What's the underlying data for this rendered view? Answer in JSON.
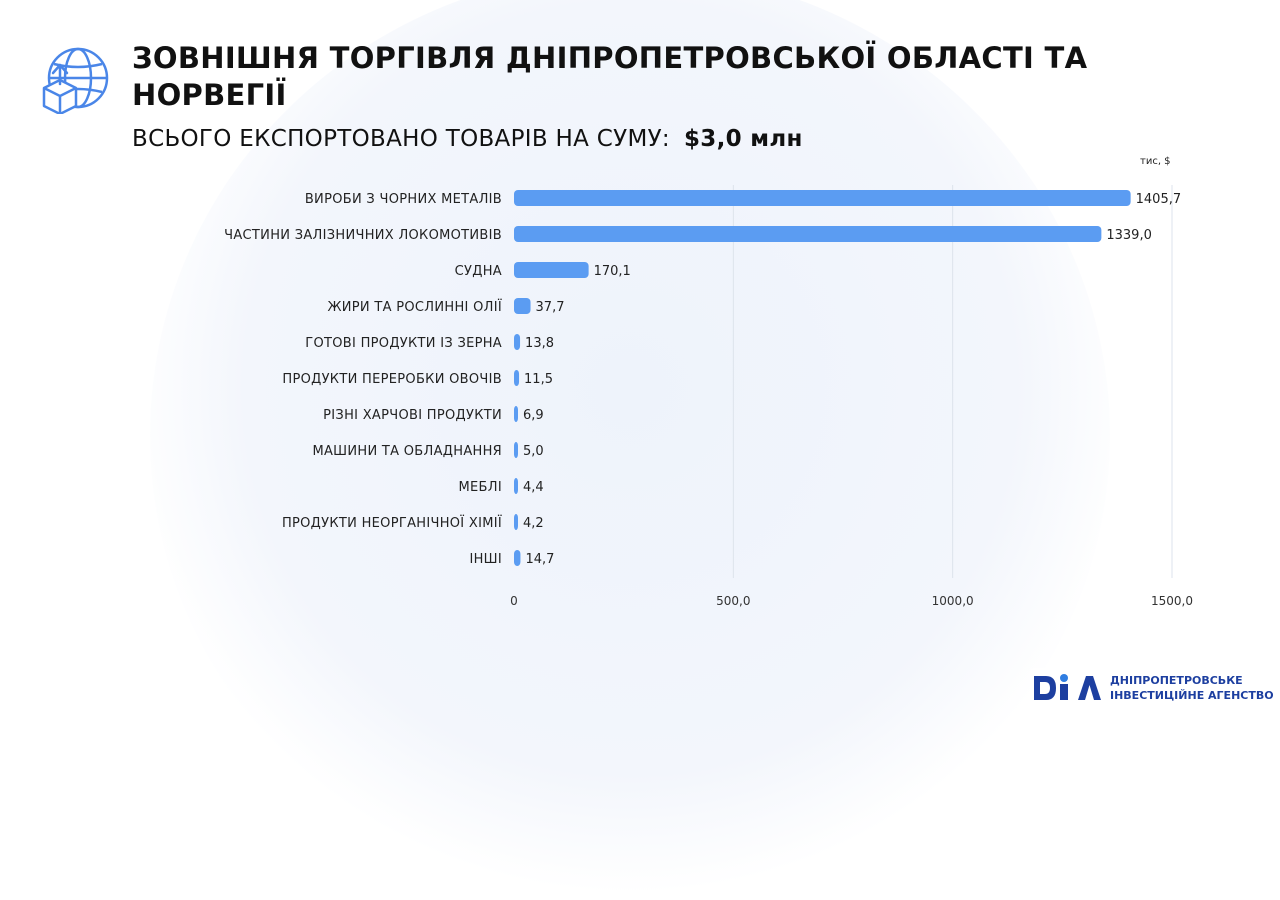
{
  "header": {
    "title": "ЗОВНІШНЯ ТОРГІВЛЯ ДНІПРОПЕТРОВСЬКОЇ ОБЛАСТІ ТА НОРВЕГІЇ",
    "subtitle_label": "ВСЬОГО ЕКСПОРТОВАНО ТОВАРІВ НА СУМУ:",
    "subtitle_total": "$3,0 млн",
    "icon": "globe-export-box-icon"
  },
  "unit_label": "тис, $",
  "chart_data": {
    "type": "bar",
    "orientation": "horizontal",
    "categories": [
      "ВИРОБИ З ЧОРНИХ МЕТАЛІВ",
      "ЧАСТИНИ ЗАЛІЗНИЧНИХ ЛОКОМОТИВІВ",
      "СУДНА",
      "ЖИРИ ТА РОСЛИННІ ОЛІЇ",
      "ГОТОВІ ПРОДУКТИ ІЗ ЗЕРНА",
      "ПРОДУКТИ ПЕРЕРОБКИ ОВОЧІВ",
      "РІЗНІ ХАРЧОВІ ПРОДУКТИ",
      "МАШИНИ ТА ОБЛАДНАННЯ",
      "МЕБЛІ",
      "ПРОДУКТИ НЕОРГАНІЧНОЇ ХІМІЇ",
      "ІНШІ"
    ],
    "values": [
      1405.7,
      1339.0,
      170.1,
      37.7,
      13.8,
      11.5,
      6.9,
      5.0,
      4.4,
      4.2,
      14.7
    ],
    "value_labels": [
      "1405,7",
      "1339,0",
      "170,1",
      "37,7",
      "13,8",
      "11,5",
      "6,9",
      "5,0",
      "4,4",
      "4,2",
      "14,7"
    ],
    "xlim": [
      0,
      1500
    ],
    "x_ticks": [
      0,
      500,
      1000,
      1500
    ],
    "x_tick_labels": [
      "0",
      "500,0",
      "1000,0",
      "1500,0"
    ],
    "grid": true,
    "bar_color": "#5b9cf2"
  },
  "brand": {
    "logo_text": "DIA",
    "line1": "ДНІПРОПЕТРОВСЬКЕ",
    "line2": "ІНВЕСТИЦІЙНЕ АГЕНСТВО",
    "color": "#1d3fa0"
  }
}
